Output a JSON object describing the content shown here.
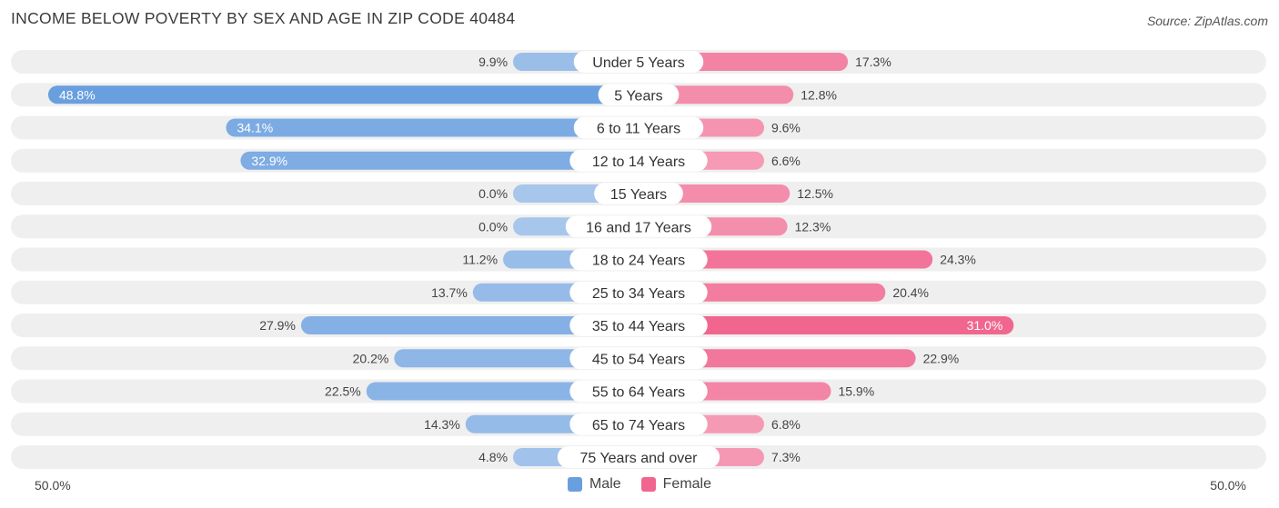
{
  "header": {
    "title": "INCOME BELOW POVERTY BY SEX AND AGE IN ZIP CODE 40484",
    "source": "Source: ZipAtlas.com"
  },
  "colors": {
    "male": "#6a9fdf",
    "male_light": "#a7c6ec",
    "female": "#f0668f",
    "female_light": "#f7a8c0",
    "track": "#efefef"
  },
  "legend": {
    "male_label": "Male",
    "female_label": "Female"
  },
  "axis": {
    "left_label": "50.0%",
    "right_label": "50.0%"
  },
  "chart_data": {
    "type": "bar",
    "orientation": "horizontal-diverging",
    "title": "INCOME BELOW POVERTY BY SEX AND AGE IN ZIP CODE 40484",
    "xlim": [
      -50,
      50
    ],
    "categories": [
      "Under 5 Years",
      "5 Years",
      "6 to 11 Years",
      "12 to 14 Years",
      "15 Years",
      "16 and 17 Years",
      "18 to 24 Years",
      "25 to 34 Years",
      "35 to 44 Years",
      "45 to 54 Years",
      "55 to 64 Years",
      "65 to 74 Years",
      "75 Years and over"
    ],
    "series": [
      {
        "name": "Male",
        "values": [
          9.9,
          48.8,
          34.1,
          32.9,
          0.0,
          0.0,
          11.2,
          13.7,
          27.9,
          20.2,
          22.5,
          14.3,
          4.8
        ],
        "labels": [
          "9.9%",
          "48.8%",
          "34.1%",
          "32.9%",
          "0.0%",
          "0.0%",
          "11.2%",
          "13.7%",
          "27.9%",
          "20.2%",
          "22.5%",
          "14.3%",
          "4.8%"
        ]
      },
      {
        "name": "Female",
        "values": [
          17.3,
          12.8,
          9.6,
          6.6,
          12.5,
          12.3,
          24.3,
          20.4,
          31.0,
          22.9,
          15.9,
          6.8,
          7.3
        ],
        "labels": [
          "17.3%",
          "12.8%",
          "9.6%",
          "6.6%",
          "12.5%",
          "12.3%",
          "24.3%",
          "20.4%",
          "31.0%",
          "22.9%",
          "15.9%",
          "6.8%",
          "7.3%"
        ]
      }
    ],
    "legend_position": "bottom-center"
  }
}
